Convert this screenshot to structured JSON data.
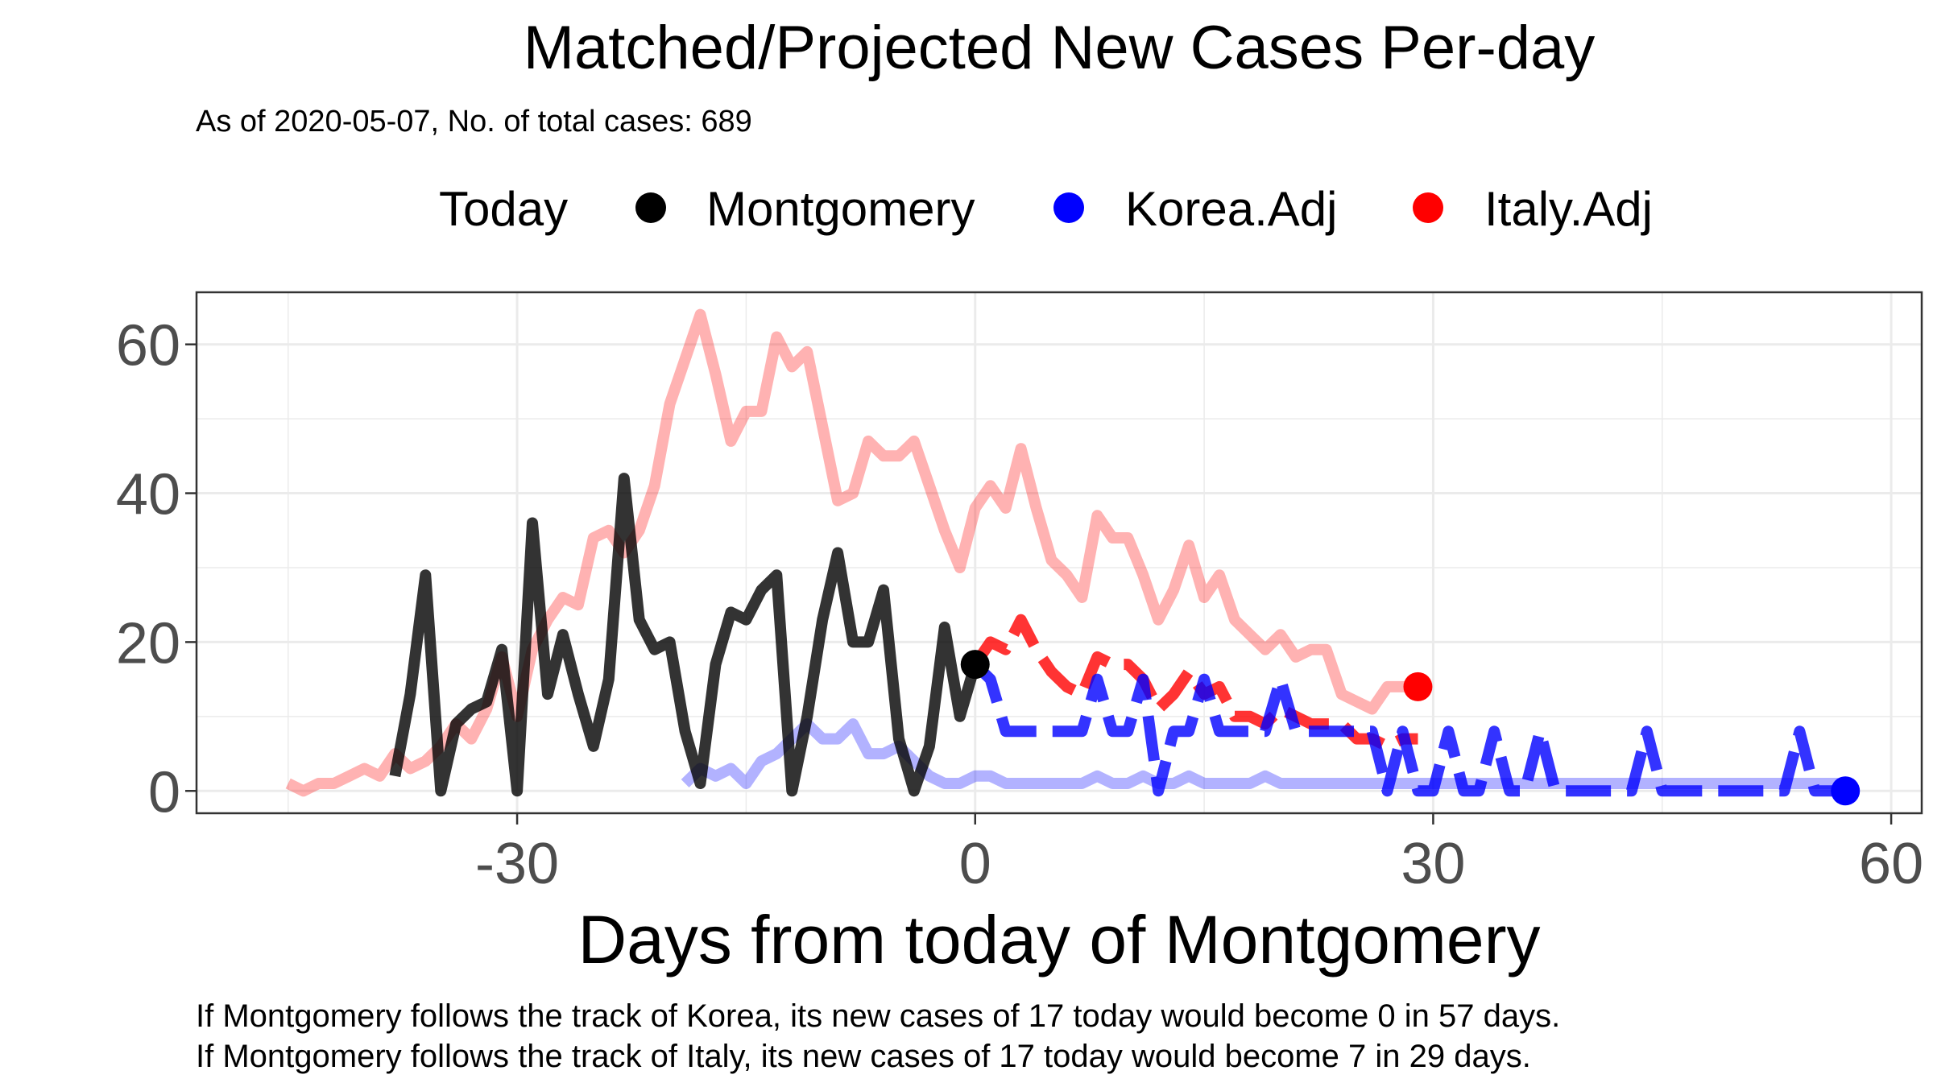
{
  "chart_data": {
    "type": "line",
    "title": "Matched/Projected New Cases Per-day",
    "subtitle": "As of 2020-05-07, No. of total cases: 689",
    "xlabel": "Days from today of Montgomery",
    "ylabel": "",
    "xlim": [
      -51,
      62
    ],
    "ylim": [
      -3,
      67
    ],
    "x_ticks": [
      -30,
      0,
      30,
      60
    ],
    "y_ticks": [
      0,
      20,
      40,
      60
    ],
    "grid": true,
    "legend_position": "top",
    "legend": {
      "title": "Today",
      "items": [
        {
          "label": "Montgomery",
          "color": "#000000"
        },
        {
          "label": "Korea.Adj",
          "color": "#0000ff"
        },
        {
          "label": "Italy.Adj",
          "color": "#ff0000"
        }
      ]
    },
    "captions": [
      "If Montgomery follows the track of Korea, its new cases of 17 today would become 0 in 57 days.",
      "If Montgomery follows the track of Italy, its new cases of 17 today would become 7 in 29 days."
    ],
    "series": [
      {
        "name": "Montgomery",
        "color": "#000000",
        "opacity": 0.8,
        "style": "solid",
        "x": [
          -38,
          -37,
          -36,
          -35,
          -34,
          -33,
          -32,
          -31,
          -30,
          -29,
          -28,
          -27,
          -26,
          -25,
          -24,
          -23,
          -22,
          -21,
          -20,
          -19,
          -18,
          -17,
          -16,
          -15,
          -14,
          -13,
          -12,
          -11,
          -10,
          -9,
          -8,
          -7,
          -6,
          -5,
          -4,
          -3,
          -2,
          -1,
          0
        ],
        "y": [
          2,
          13,
          29,
          0,
          9,
          11,
          12,
          19,
          0,
          36,
          13,
          21,
          13,
          6,
          15,
          42,
          23,
          19,
          20,
          8,
          1,
          17,
          24,
          23,
          27,
          29,
          0,
          10,
          23,
          32,
          20,
          20,
          27,
          7,
          0,
          6,
          22,
          10,
          17
        ]
      },
      {
        "name": "Korea.Adj (history)",
        "color": "#0000ff",
        "opacity": 0.3,
        "style": "solid",
        "x": [
          -19,
          -18,
          -17,
          -16,
          -15,
          -14,
          -13,
          -12,
          -11,
          -10,
          -9,
          -8,
          -7,
          -6,
          -5,
          -4,
          -3,
          -2,
          -1,
          0,
          1,
          2,
          3,
          4,
          5,
          6,
          7,
          8,
          9,
          10,
          11,
          12,
          13,
          14,
          15,
          16,
          17,
          18,
          19,
          20,
          21,
          22,
          23,
          24,
          25,
          26,
          27,
          28,
          29,
          30,
          31,
          32,
          33,
          34,
          35,
          36,
          37,
          38,
          39,
          40,
          41,
          42,
          43,
          44,
          45,
          46,
          47,
          48,
          49,
          50,
          51,
          52,
          53,
          54,
          55,
          56,
          57
        ],
        "y": [
          1,
          3,
          2,
          3,
          1,
          4,
          5,
          7,
          9,
          7,
          7,
          9,
          5,
          5,
          6,
          4,
          2,
          1,
          1,
          2,
          2,
          1,
          1,
          1,
          1,
          1,
          1,
          2,
          1,
          1,
          2,
          1,
          1,
          2,
          1,
          1,
          1,
          1,
          2,
          1,
          1,
          1,
          1,
          1,
          1,
          1,
          1,
          1,
          1,
          1,
          1,
          1,
          1,
          1,
          1,
          1,
          1,
          1,
          1,
          1,
          1,
          1,
          1,
          1,
          1,
          1,
          1,
          1,
          1,
          1,
          1,
          1,
          1,
          1,
          1,
          1,
          1
        ]
      },
      {
        "name": "Italy.Adj (history)",
        "color": "#ff0000",
        "opacity": 0.3,
        "style": "solid",
        "x": [
          -45,
          -44,
          -43,
          -42,
          -41,
          -40,
          -39,
          -38,
          -37,
          -36,
          -35,
          -34,
          -33,
          -32,
          -31,
          -30,
          -29,
          -28,
          -27,
          -26,
          -25,
          -24,
          -23,
          -22,
          -21,
          -20,
          -19,
          -18,
          -17,
          -16,
          -15,
          -14,
          -13,
          -12,
          -11,
          -10,
          -9,
          -8,
          -7,
          -6,
          -5,
          -4,
          -3,
          -2,
          -1,
          0,
          1,
          2,
          3,
          4,
          5,
          6,
          7,
          8,
          9,
          10,
          11,
          12,
          13,
          14,
          15,
          16,
          17,
          18,
          19,
          20,
          21,
          22,
          23,
          24,
          25,
          26,
          27,
          28,
          29
        ],
        "y": [
          1,
          0,
          1,
          1,
          2,
          3,
          2,
          5,
          3,
          4,
          6,
          9,
          7,
          11,
          18,
          10,
          19,
          23,
          26,
          25,
          34,
          35,
          32,
          35,
          41,
          52,
          58,
          64,
          56,
          47,
          51,
          51,
          61,
          57,
          59,
          49,
          39,
          40,
          47,
          45,
          45,
          47,
          41,
          35,
          30,
          38,
          41,
          38,
          46,
          38,
          31,
          29,
          26,
          37,
          34,
          34,
          29,
          23,
          27,
          33,
          26,
          29,
          23,
          21,
          19,
          21,
          18,
          19,
          19,
          13,
          12,
          11,
          14,
          14,
          14
        ]
      },
      {
        "name": "Korea.Adj (projection)",
        "color": "#0000ff",
        "opacity": 0.8,
        "style": "dashed",
        "x": [
          0,
          1,
          2,
          3,
          4,
          5,
          6,
          7,
          8,
          9,
          10,
          11,
          12,
          13,
          14,
          15,
          16,
          17,
          18,
          19,
          20,
          21,
          22,
          23,
          24,
          25,
          26,
          27,
          28,
          29,
          30,
          31,
          32,
          33,
          34,
          35,
          36,
          37,
          38,
          39,
          40,
          41,
          42,
          43,
          44,
          45,
          46,
          47,
          48,
          49,
          50,
          51,
          52,
          53,
          54,
          55,
          56,
          57
        ],
        "y": [
          17,
          15,
          8,
          8,
          8,
          8,
          8,
          8,
          15,
          8,
          8,
          15,
          0,
          8,
          8,
          15,
          8,
          8,
          8,
          8,
          15,
          8,
          8,
          8,
          8,
          8,
          8,
          0,
          8,
          0,
          0,
          8,
          0,
          0,
          8,
          0,
          0,
          8,
          0,
          0,
          0,
          0,
          0,
          0,
          8,
          0,
          0,
          0,
          0,
          0,
          0,
          0,
          0,
          0,
          8,
          0,
          0,
          0
        ]
      },
      {
        "name": "Italy.Adj (projection)",
        "color": "#ff0000",
        "opacity": 0.8,
        "style": "dashed",
        "x": [
          0,
          1,
          2,
          3,
          4,
          5,
          6,
          7,
          8,
          9,
          10,
          11,
          12,
          13,
          14,
          15,
          16,
          17,
          18,
          19,
          20,
          21,
          22,
          23,
          24,
          25,
          26,
          27,
          28,
          29
        ],
        "y": [
          17,
          20,
          19,
          23,
          19,
          16,
          14,
          13,
          18,
          17,
          17,
          15,
          11,
          13,
          16,
          13,
          14,
          10,
          10,
          9,
          11,
          10,
          9,
          9,
          9,
          7,
          7,
          6,
          7,
          7
        ]
      }
    ],
    "end_points": [
      {
        "series": "Montgomery",
        "x": 0,
        "y": 17,
        "color": "#000000"
      },
      {
        "series": "Korea.Adj",
        "x": 57,
        "y": 0,
        "color": "#0000ff"
      },
      {
        "series": "Italy.Adj",
        "x": 29,
        "y": 14,
        "color": "#ff0000"
      }
    ]
  }
}
